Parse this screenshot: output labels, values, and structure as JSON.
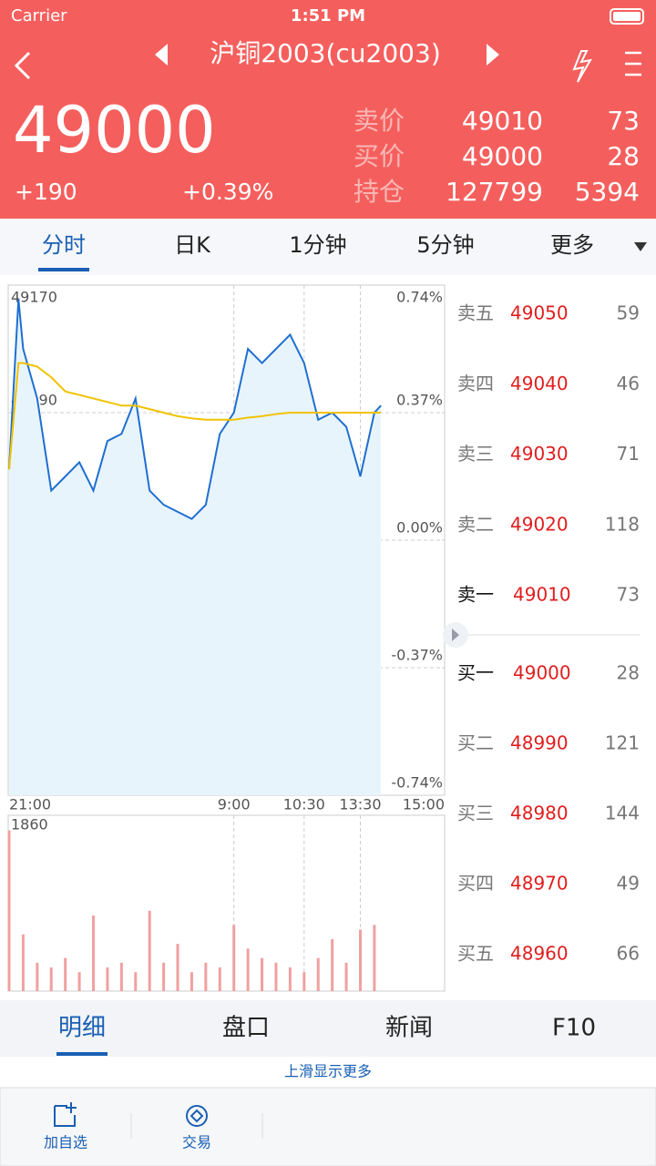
{
  "status": {
    "carrier": "Carrier",
    "time": "1:51 PM"
  },
  "header": {
    "title": "沪铜2003(cu2003)",
    "price": "49000",
    "change": "+190",
    "change_pct": "+0.39%",
    "quotes": [
      [
        "卖价",
        "49010",
        "73"
      ],
      [
        "买价",
        "49000",
        "28"
      ],
      [
        "持仓",
        "127799",
        "5394"
      ]
    ]
  },
  "tabs": [
    "分时",
    "日K",
    "1分钟",
    "5分钟",
    "更多"
  ],
  "chart_data": [
    {
      "type": "line",
      "x": [
        0,
        10,
        15,
        30,
        45,
        60,
        75,
        90,
        105,
        120,
        135,
        150,
        165,
        180,
        195,
        210,
        225,
        240,
        255,
        270,
        285,
        300,
        315,
        330,
        345,
        360,
        375,
        390,
        397
      ],
      "series": [
        {
          "color": "#1f6fd1",
          "values": [
            48910,
            49150,
            49080,
            49010,
            48880,
            48900,
            48920,
            48880,
            48950,
            48960,
            49010,
            48880,
            48860,
            48850,
            48840,
            48860,
            48960,
            48990,
            49080,
            49060,
            49080,
            49100,
            49060,
            48980,
            48990,
            48970,
            48900,
            48990,
            49000
          ]
        },
        {
          "color": "#f2c200",
          "values": [
            48910,
            49060,
            49060,
            49055,
            49040,
            49020,
            49015,
            49010,
            49005,
            49000,
            49000,
            48995,
            48990,
            48985,
            48982,
            48980,
            48980,
            48980,
            48983,
            48985,
            48988,
            48990,
            48990,
            48990,
            48990,
            48990,
            48990,
            48990,
            48990
          ]
        }
      ],
      "xlim": [
        0,
        465
      ],
      "xticks": [
        {
          "value": 0,
          "label": "21:00"
        },
        {
          "value": 240,
          "label": "9:00"
        },
        {
          "value": 315,
          "label": "10:30"
        },
        {
          "value": 375,
          "label": "13:30"
        },
        {
          "value": 465,
          "label": "15:00"
        }
      ],
      "ylim": [
        48450,
        49170
      ],
      "yticks": [
        48450,
        48630,
        48810,
        48990,
        49170
      ],
      "y2lim": [
        -0.74,
        0.74
      ],
      "y2ticks": [
        {
          "value": -0.74,
          "label": "-0.74%"
        },
        {
          "value": -0.37,
          "label": "-0.37%"
        },
        {
          "value": 0,
          "label": "0.00%"
        },
        {
          "value": 0.37,
          "label": "0.37%"
        },
        {
          "value": 0.74,
          "label": "0.74%"
        }
      ],
      "fill": "#e8f4fc",
      "grid": true
    },
    {
      "type": "bar",
      "x": [
        0,
        15,
        30,
        45,
        60,
        75,
        90,
        105,
        120,
        135,
        150,
        165,
        180,
        195,
        210,
        225,
        240,
        255,
        270,
        285,
        300,
        315,
        330,
        345,
        360,
        375,
        390
      ],
      "values": [
        1700,
        600,
        300,
        250,
        350,
        200,
        800,
        250,
        300,
        200,
        850,
        300,
        500,
        200,
        300,
        250,
        700,
        450,
        350,
        300,
        250,
        200,
        350,
        550,
        300,
        650,
        700
      ],
      "color": "#f0a0a0",
      "xlim": [
        0,
        465
      ],
      "ylim": [
        0,
        1860
      ],
      "yticks": [
        1860
      ]
    }
  ],
  "order_book": {
    "sell": [
      [
        "卖五",
        "49050",
        "59"
      ],
      [
        "卖四",
        "49040",
        "46"
      ],
      [
        "卖三",
        "49030",
        "71"
      ],
      [
        "卖二",
        "49020",
        "118"
      ],
      [
        "卖一",
        "49010",
        "73"
      ]
    ],
    "buy": [
      [
        "买一",
        "49000",
        "28"
      ],
      [
        "买二",
        "48990",
        "121"
      ],
      [
        "买三",
        "48980",
        "144"
      ],
      [
        "买四",
        "48970",
        "49"
      ],
      [
        "买五",
        "48960",
        "66"
      ]
    ]
  },
  "bottom_tabs": [
    "明细",
    "盘口",
    "新闻",
    "F10"
  ],
  "hint": "上滑显示更多",
  "toolbar": [
    "加自选",
    "交易"
  ]
}
